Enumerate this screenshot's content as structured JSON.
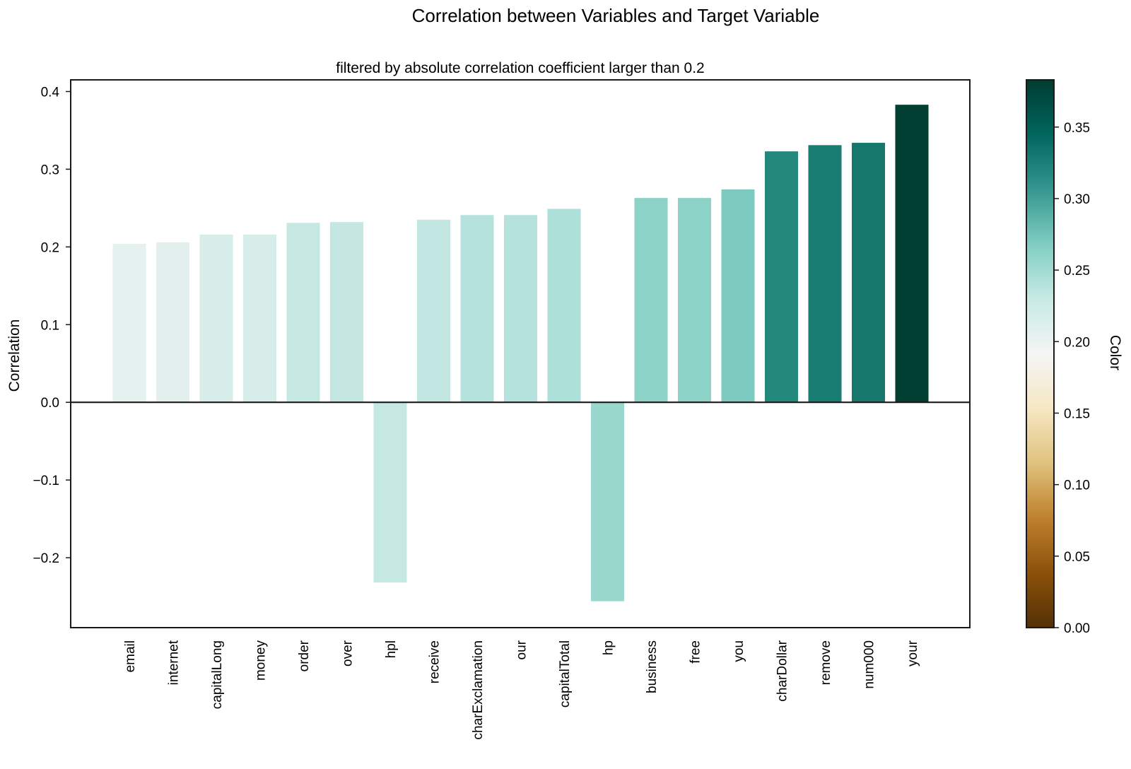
{
  "chart_data": {
    "type": "bar",
    "title": "Correlation between Variables and Target Variable",
    "subtitle": "filtered by absolute correlation coefficient larger than 0.2",
    "xlabel": "",
    "ylabel": "Correlation",
    "ylim": [
      -0.29,
      0.415
    ],
    "yticks": [
      -0.2,
      -0.1,
      0.0,
      0.1,
      0.2,
      0.3,
      0.4
    ],
    "ytick_labels": [
      "−0.2",
      "−0.1",
      "0.0",
      "0.1",
      "0.2",
      "0.3",
      "0.4"
    ],
    "grid": false,
    "categories": [
      "email",
      "internet",
      "capitalLong",
      "money",
      "order",
      "over",
      "hpl",
      "receive",
      "charExclamation",
      "our",
      "capitalTotal",
      "hp",
      "business",
      "free",
      "you",
      "charDollar",
      "remove",
      "num000",
      "your"
    ],
    "values": [
      0.204,
      0.206,
      0.216,
      0.216,
      0.231,
      0.232,
      -0.232,
      0.235,
      0.241,
      0.241,
      0.249,
      -0.256,
      0.263,
      0.263,
      0.274,
      0.323,
      0.331,
      0.334,
      0.383
    ],
    "bar_colors": [
      "#e5f1ef",
      "#e3f0ee",
      "#d7ede9",
      "#d7ede9",
      "#c5e8e3",
      "#c4e7e2",
      "#c5e8e3",
      "#c2e6e1",
      "#b5e2dc",
      "#b5e2dc",
      "#ace0d8",
      "#9ad8ce",
      "#8dd2c6",
      "#8dd2c6",
      "#7ccac0",
      "#24877c",
      "#1a7d73",
      "#16776d",
      "#013f33"
    ],
    "colorbar": {
      "label": "Color",
      "range": [
        0.0,
        0.383
      ],
      "ticks": [
        0.0,
        0.05,
        0.1,
        0.15,
        0.2,
        0.25,
        0.3,
        0.35
      ],
      "tick_labels": [
        "0.00",
        "0.05",
        "0.10",
        "0.15",
        "0.20",
        "0.25",
        "0.30",
        "0.35"
      ],
      "colormap": "BrBG",
      "stops": [
        "#543005",
        "#8c510a",
        "#bf812d",
        "#dfc27d",
        "#f6e8c3",
        "#f5f5f5",
        "#c7eae5",
        "#80cdc1",
        "#35978f",
        "#01665e",
        "#003c30"
      ]
    }
  }
}
